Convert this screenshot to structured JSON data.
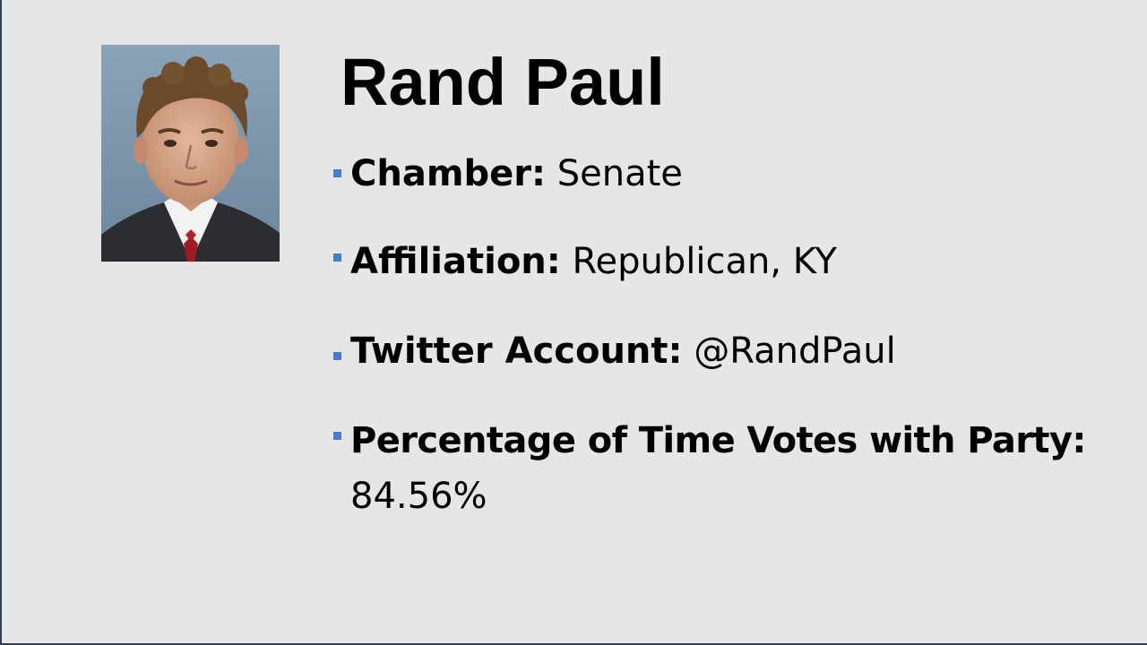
{
  "slide": {
    "title": "Rand Paul",
    "bullets": [
      {
        "label": "Chamber:",
        "value": "Senate"
      },
      {
        "label": "Affiliation:",
        "value": "Republican, KY"
      },
      {
        "label": "Twitter Account:",
        "value": "@RandPaul"
      },
      {
        "label": "Percentage of Time Votes with Party:",
        "value": "84.56%"
      }
    ]
  },
  "colors": {
    "background": "#e6e6e6",
    "bullet_marker": "#4a7bc8",
    "border": "#2f3f57"
  },
  "icons": {
    "bullet": "square-bullet-icon"
  }
}
